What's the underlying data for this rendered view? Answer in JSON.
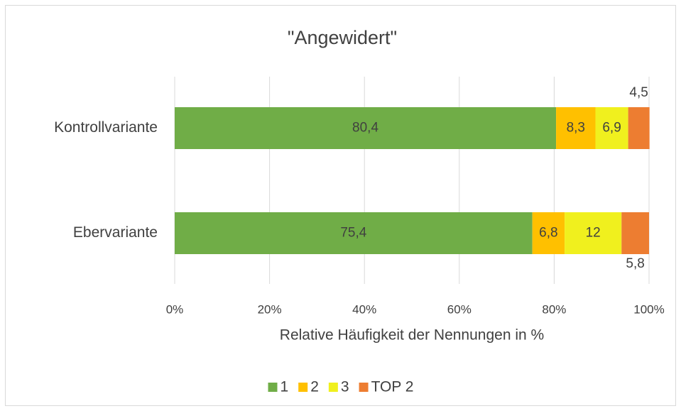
{
  "chart_data": {
    "type": "bar",
    "orientation": "horizontal",
    "stacked": true,
    "title": "\"Angewidert\"",
    "categories": [
      "Kontrollvariante",
      "Ebervariante"
    ],
    "series": [
      {
        "name": "1",
        "color": "#70ad47",
        "values": [
          80.4,
          75.4
        ],
        "value_labels": [
          "80,4",
          "75,4"
        ]
      },
      {
        "name": "2",
        "color": "#ffc000",
        "values": [
          8.3,
          6.8
        ],
        "value_labels": [
          "8,3",
          "6,8"
        ]
      },
      {
        "name": "3",
        "color": "#f0f01e",
        "values": [
          6.9,
          12
        ],
        "value_labels": [
          "6,9",
          "12"
        ]
      },
      {
        "name": "TOP 2",
        "color": "#ed7d31",
        "values": [
          4.5,
          5.8
        ],
        "value_labels": [
          "4,5",
          "5,8"
        ]
      }
    ],
    "xlabel": "Relative Häufigkeit der Nennungen in %",
    "xlim": [
      0,
      100
    ],
    "xticks": [
      {
        "value": 0,
        "label": "0%"
      },
      {
        "value": 20,
        "label": "20%"
      },
      {
        "value": 40,
        "label": "40%"
      },
      {
        "value": 60,
        "label": "60%"
      },
      {
        "value": 80,
        "label": "80%"
      },
      {
        "value": 100,
        "label": "100%"
      }
    ],
    "grid": true,
    "legend": "bottom"
  }
}
